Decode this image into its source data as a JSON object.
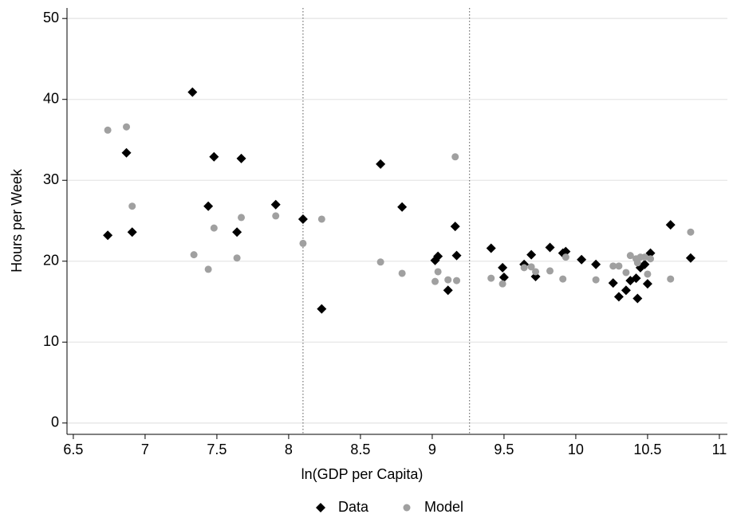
{
  "chart_data": {
    "type": "scatter",
    "x_label": "ln(GDP per Capita)",
    "y_label": "Hours per Week",
    "xlim": [
      6.456,
      11.056
    ],
    "ylim": [
      -1.4,
      51.3
    ],
    "xticks": [
      6.5,
      7,
      7.5,
      8,
      8.5,
      9,
      9.5,
      10,
      10.5,
      11
    ],
    "yticks": [
      0,
      10,
      20,
      30,
      40,
      50
    ],
    "grid": true,
    "legend": "bottom",
    "vlines": [
      8.1,
      9.26
    ],
    "series": [
      {
        "name": "Data",
        "color": "#000000",
        "marker": "diamond",
        "x": [
          6.74,
          6.87,
          6.91,
          7.33,
          7.48,
          7.44,
          7.67,
          7.64,
          7.91,
          8.1,
          8.23,
          8.64,
          8.79,
          9.16,
          9.17,
          9.02,
          9.04,
          9.11,
          9.41,
          9.49,
          9.5,
          9.64,
          9.69,
          9.72,
          9.82,
          9.91,
          9.93,
          10.04,
          10.14,
          10.26,
          10.3,
          10.35,
          10.38,
          10.42,
          10.43,
          10.45,
          10.48,
          10.5,
          10.52,
          10.66,
          10.8
        ],
        "y": [
          23.2,
          33.4,
          23.6,
          40.9,
          32.9,
          26.8,
          32.7,
          23.6,
          27.0,
          25.2,
          14.1,
          32.0,
          26.7,
          24.3,
          20.7,
          20.1,
          20.6,
          16.4,
          21.6,
          19.2,
          18.0,
          19.6,
          20.8,
          18.1,
          21.7,
          21.0,
          21.2,
          20.2,
          19.6,
          17.3,
          15.6,
          16.4,
          17.6,
          17.9,
          15.4,
          19.2,
          19.6,
          17.2,
          21.0,
          24.5,
          20.4
        ]
      },
      {
        "name": "Model",
        "color": "#a0a0a0",
        "marker": "circle",
        "x": [
          6.74,
          6.87,
          6.91,
          7.34,
          7.44,
          7.48,
          7.64,
          7.67,
          7.91,
          8.1,
          8.23,
          8.64,
          8.79,
          9.16,
          9.02,
          9.04,
          9.11,
          9.17,
          9.41,
          9.49,
          9.64,
          9.69,
          9.72,
          9.82,
          9.91,
          9.93,
          10.14,
          10.26,
          10.3,
          10.35,
          10.38,
          10.42,
          10.45,
          10.48,
          10.5,
          10.52,
          10.66,
          10.8,
          10.43
        ],
        "y": [
          36.2,
          36.6,
          26.8,
          20.8,
          19.0,
          24.1,
          20.4,
          25.4,
          25.6,
          22.2,
          25.2,
          19.9,
          18.5,
          32.9,
          17.5,
          18.7,
          17.7,
          17.6,
          17.9,
          17.2,
          19.2,
          19.3,
          18.7,
          18.8,
          17.8,
          20.5,
          17.7,
          19.4,
          19.4,
          18.6,
          20.7,
          20.3,
          20.5,
          20.5,
          18.4,
          20.3,
          17.8,
          23.6,
          19.8
        ]
      }
    ]
  }
}
